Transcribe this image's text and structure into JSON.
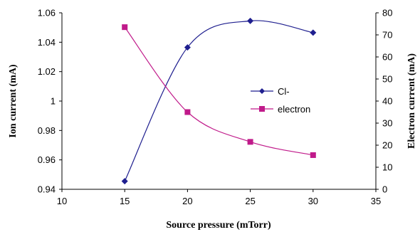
{
  "chart_data": {
    "type": "line",
    "x": [
      15,
      20,
      25,
      30
    ],
    "xlabel": "Source pressure (mTorr)",
    "xlim": [
      10,
      35
    ],
    "xticks": [
      "10",
      "15",
      "20",
      "25",
      "30",
      "35"
    ],
    "ylabel": "Ion current (mA)",
    "ylim": [
      0.94,
      1.06
    ],
    "yticks": [
      "0.94",
      "0.96",
      "0.98",
      "1",
      "1.02",
      "1.04",
      "1.06"
    ],
    "y2label": "Electron current (mA)",
    "y2lim": [
      0,
      80
    ],
    "y2ticks": [
      "0",
      "10",
      "20",
      "30",
      "40",
      "50",
      "60",
      "70",
      "80"
    ],
    "grid": false,
    "legend_position": "center-right",
    "smoothed": true,
    "series": [
      {
        "name": "Cl-",
        "axis": "left",
        "marker": "diamond",
        "color": "#1f1f8f",
        "values": [
          0.9455,
          1.0365,
          1.0545,
          1.0465
        ]
      },
      {
        "name": "electron",
        "axis": "right",
        "marker": "square",
        "color": "#c01a8a",
        "values": [
          73.5,
          35,
          21.5,
          15.5
        ]
      }
    ]
  }
}
